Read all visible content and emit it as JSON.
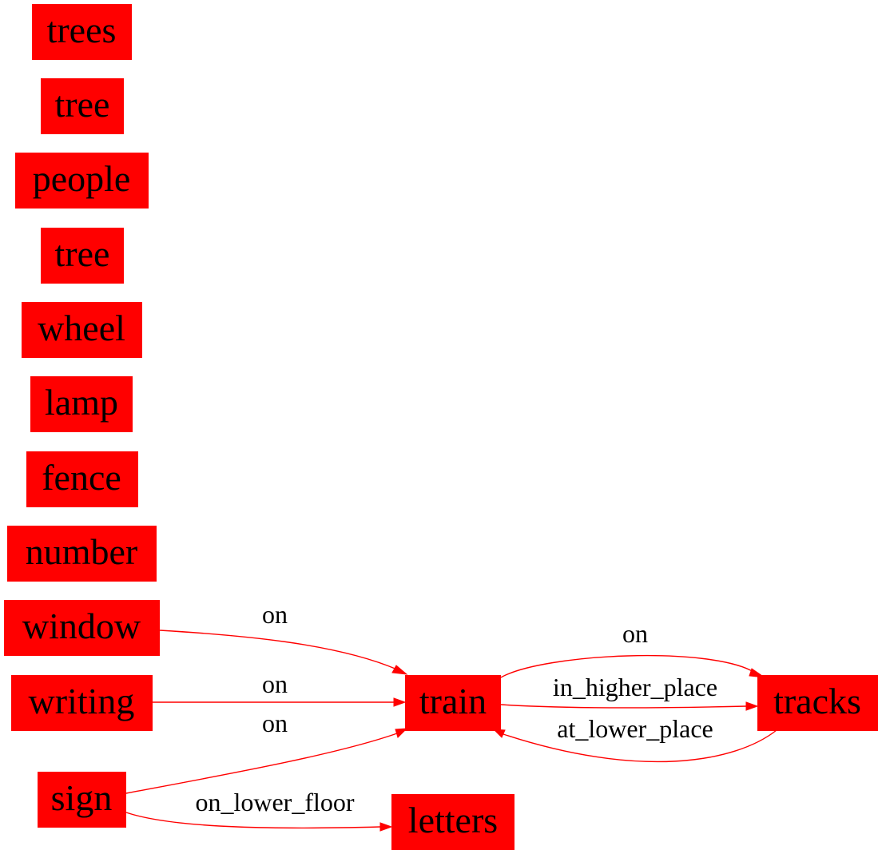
{
  "colors": {
    "node_fill": "#ff0000",
    "edge": "#ff0000",
    "text": "#000000",
    "background": "#ffffff"
  },
  "nodes": {
    "trees": "trees",
    "tree_1": "tree",
    "people": "people",
    "tree_2": "tree",
    "wheel": "wheel",
    "lamp": "lamp",
    "fence": "fence",
    "number": "number",
    "window": "window",
    "writing": "writing",
    "sign": "sign",
    "train": "train",
    "tracks": "tracks",
    "letters": "letters"
  },
  "edges": {
    "window_train": {
      "from": "window",
      "to": "train",
      "label": "on"
    },
    "writing_train": {
      "from": "writing",
      "to": "train",
      "label": "on"
    },
    "sign_train": {
      "from": "sign",
      "to": "train",
      "label": "on"
    },
    "sign_letters": {
      "from": "sign",
      "to": "letters",
      "label": "on_lower_floor"
    },
    "train_tracks_on": {
      "from": "train",
      "to": "tracks",
      "label": "on"
    },
    "train_tracks_higher": {
      "from": "train",
      "to": "tracks",
      "label": "in_higher_place"
    },
    "tracks_train_lower": {
      "from": "tracks",
      "to": "train",
      "label": "at_lower_place"
    }
  }
}
